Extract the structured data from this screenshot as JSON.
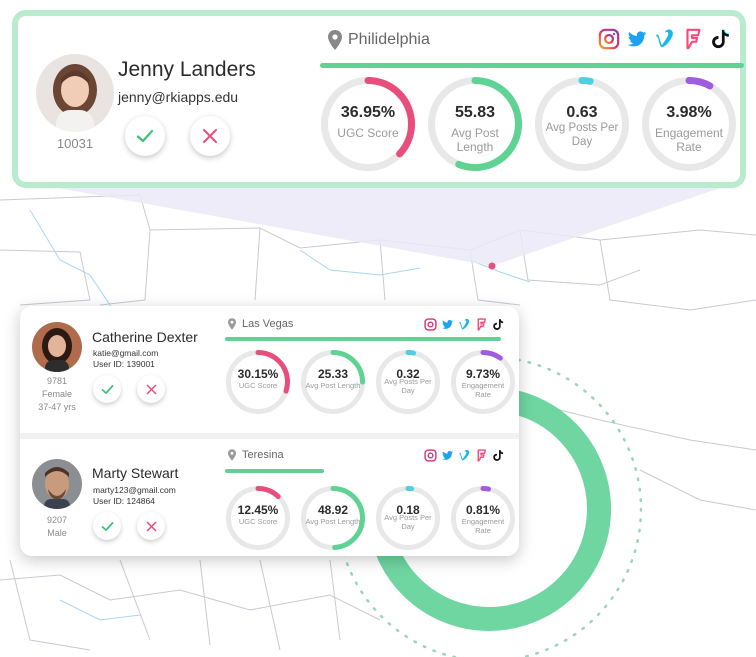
{
  "featured": {
    "name": "Jenny Landers",
    "email": "jenny@rkiapps.edu",
    "id": "10031",
    "location": "Philidelphia",
    "progress": 1.0,
    "stats": [
      {
        "value": "36.95%",
        "label": "UGC Score",
        "pct": 0.37,
        "color": "#e84e7b"
      },
      {
        "value": "55.83",
        "label": "Avg Post Length",
        "pct": 0.56,
        "color": "#5fd394"
      },
      {
        "value": "0.63",
        "label": "Avg Posts Per Day",
        "pct": 0.03,
        "color": "#4fcfe0"
      },
      {
        "value": "3.98%",
        "label": "Engagement Rate",
        "pct": 0.08,
        "color": "#a05ce0"
      }
    ]
  },
  "influencers": [
    {
      "name": "Catherine Dexter",
      "email": "katie@gmail.com",
      "user_id": "User ID: 139001",
      "id": "9781",
      "gender": "Female",
      "age": "37-47 yrs",
      "location": "Las Vegas",
      "progress": 0.95,
      "stats": [
        {
          "value": "30.15%",
          "label": "UGC Score",
          "pct": 0.3,
          "color": "#e84e7b"
        },
        {
          "value": "25.33",
          "label": "Avg Post Length",
          "pct": 0.25,
          "color": "#5fd394"
        },
        {
          "value": "0.32",
          "label": "Avg Posts Per Day",
          "pct": 0.03,
          "color": "#4fcfe0"
        },
        {
          "value": "9.73%",
          "label": "Engagement Rate",
          "pct": 0.1,
          "color": "#a05ce0"
        }
      ]
    },
    {
      "name": "Marty Stewart",
      "email": "marty123@gmail.com",
      "user_id": "User ID: 124864",
      "id": "9207",
      "gender": "Male",
      "location": "Teresina",
      "progress": 0.34,
      "stats": [
        {
          "value": "12.45%",
          "label": "UGC Score",
          "pct": 0.12,
          "color": "#e84e7b"
        },
        {
          "value": "48.92",
          "label": "Avg Post Length",
          "pct": 0.49,
          "color": "#5fd394"
        },
        {
          "value": "0.18",
          "label": "Avg Posts Per Day",
          "pct": 0.02,
          "color": "#4fcfe0"
        },
        {
          "value": "0.81%",
          "label": "Engagement Rate",
          "pct": 0.03,
          "color": "#a05ce0"
        }
      ]
    }
  ],
  "social_icons": [
    "instagram-icon",
    "twitter-icon",
    "vimeo-icon",
    "foursquare-icon",
    "tiktok-icon"
  ],
  "colors": {
    "accent": "#5fd394",
    "pink": "#e84e7b",
    "cyan": "#4fcfe0",
    "purple": "#a05ce0",
    "ring_track": "#e8e8e8",
    "frame": "#b9ebcf"
  }
}
